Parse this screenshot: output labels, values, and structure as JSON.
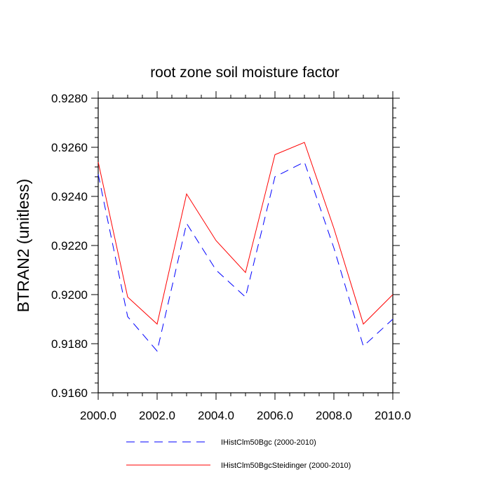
{
  "chart_data": {
    "type": "line",
    "title": "root zone soil moisture factor",
    "xlabel": "",
    "ylabel": "BTRAN2  (unitless)",
    "xlim": [
      2000,
      2010
    ],
    "ylim": [
      0.916,
      0.928
    ],
    "x_ticks": [
      2000,
      2002,
      2004,
      2006,
      2008,
      2010
    ],
    "x_tick_labels": [
      "2000.0",
      "2002.0",
      "2004.0",
      "2006.0",
      "2008.0",
      "2010.0"
    ],
    "y_ticks": [
      0.916,
      0.918,
      0.92,
      0.922,
      0.924,
      0.926,
      0.928
    ],
    "y_tick_labels": [
      "0.9160",
      "0.9180",
      "0.9200",
      "0.9220",
      "0.9240",
      "0.9260",
      "0.9280"
    ],
    "x": [
      2000,
      2001,
      2002,
      2003,
      2004,
      2005,
      2006,
      2007,
      2008,
      2009,
      2010
    ],
    "grid": false,
    "legend_position": "bottom",
    "series": [
      {
        "name": "IHistClm50Bgc (2000-2010)",
        "color": "#0000ff",
        "style": "dashed",
        "values": [
          0.9249,
          0.9191,
          0.9177,
          0.9229,
          0.921,
          0.9199,
          0.9248,
          0.9254,
          0.9219,
          0.9179,
          0.919
        ]
      },
      {
        "name": "IHistClm50BgcSteidinger (2000-2010)",
        "color": "#ff0000",
        "style": "solid",
        "values": [
          0.9254,
          0.9199,
          0.9188,
          0.9241,
          0.9222,
          0.9209,
          0.9257,
          0.9262,
          0.9227,
          0.9188,
          0.92
        ]
      }
    ]
  }
}
